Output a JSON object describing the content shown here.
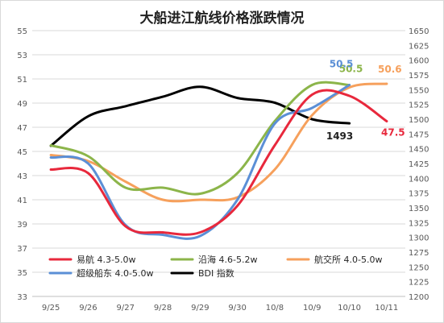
{
  "chart_data": {
    "type": "line",
    "title": "大船进江航线价格涨跌情况",
    "categories": [
      "9/25",
      "9/26",
      "9/27",
      "9/28",
      "9/29",
      "9/30",
      "10/8",
      "10/9",
      "10/10",
      "10/11"
    ],
    "y_left": {
      "range": [
        33,
        55
      ],
      "ticks": [
        33,
        35,
        37,
        39,
        41,
        43,
        45,
        47,
        49,
        51,
        53,
        55
      ]
    },
    "y_right": {
      "range": [
        1200,
        1650
      ],
      "ticks": [
        1200,
        1225,
        1250,
        1275,
        1300,
        1325,
        1350,
        1375,
        1400,
        1425,
        1450,
        1475,
        1500,
        1525,
        1550,
        1575,
        1600,
        1625,
        1650
      ]
    },
    "grid": true,
    "legend_position": "bottom",
    "series": [
      {
        "name": "易航 4.3-5.0w",
        "axis": "left",
        "color": "#e8283c",
        "values": [
          43.5,
          43.2,
          38.8,
          38.3,
          38.3,
          40.5,
          45.5,
          49.7,
          49.6,
          47.5
        ],
        "end_label": "47.5"
      },
      {
        "name": "沿海 4.6-5.2w",
        "axis": "left",
        "color": "#8cb54a",
        "values": [
          45.5,
          44.6,
          42.0,
          42.0,
          41.5,
          43.2,
          47.5,
          50.5,
          50.5,
          null
        ],
        "end_label": "50.5"
      },
      {
        "name": "航交所 4.0-5.0w",
        "axis": "left",
        "color": "#f6a05c",
        "values": [
          44.7,
          44.2,
          42.5,
          41.0,
          41.0,
          41.2,
          43.5,
          48.0,
          50.3,
          50.6
        ],
        "end_label": "50.6"
      },
      {
        "name": "超级船东 4.0-5.0w",
        "axis": "left",
        "color": "#5b8fd6",
        "values": [
          44.5,
          44.0,
          38.9,
          38.1,
          38.0,
          41.0,
          47.3,
          48.6,
          50.5,
          null
        ],
        "end_label": "50.5"
      },
      {
        "name": "BDI 指数",
        "axis": "right",
        "color": "#000000",
        "values": [
          1455,
          1505,
          1522,
          1538,
          1555,
          1536,
          1528,
          1500,
          1493,
          null
        ],
        "end_label": "1493"
      }
    ]
  }
}
